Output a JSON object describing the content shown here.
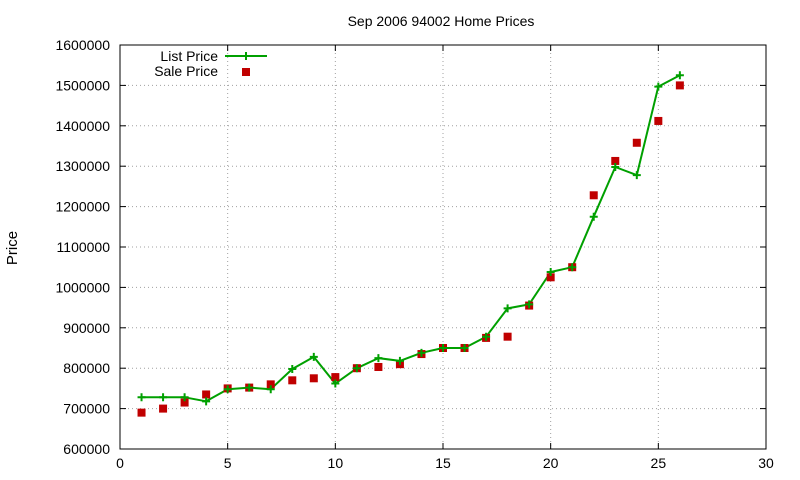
{
  "chart_data": {
    "type": "line",
    "title": "Sep 2006 94002 Home Prices",
    "xlabel": "",
    "ylabel": "Price",
    "xlim": [
      0,
      30
    ],
    "ylim": [
      600000,
      1600000
    ],
    "x_ticks": [
      "0",
      "5",
      "10",
      "15",
      "20",
      "25",
      "30"
    ],
    "y_ticks": [
      "600000",
      "700000",
      "800000",
      "900000",
      "1000000",
      "1100000",
      "1200000",
      "1300000",
      "1400000",
      "1500000",
      "1600000"
    ],
    "grid": true,
    "legend_position": "top-left",
    "series": [
      {
        "name": "List Price",
        "style": "line-with-plus-points",
        "color": "#00a000",
        "x": [
          1,
          2,
          3,
          4,
          5,
          6,
          7,
          8,
          9,
          10,
          11,
          12,
          13,
          14,
          15,
          16,
          17,
          18,
          19,
          20,
          21,
          22,
          23,
          24,
          25,
          26
        ],
        "y": [
          728000,
          728000,
          728000,
          718000,
          748000,
          752000,
          748000,
          798000,
          828000,
          762000,
          800000,
          825000,
          818000,
          838000,
          850000,
          850000,
          878000,
          948000,
          958000,
          1038000,
          1050000,
          1175000,
          1298000,
          1278000,
          1497000,
          1525000
        ]
      },
      {
        "name": "Sale Price",
        "style": "square-points",
        "color": "#c00000",
        "x": [
          1,
          2,
          3,
          4,
          5,
          6,
          7,
          8,
          9,
          10,
          11,
          12,
          13,
          14,
          15,
          16,
          17,
          18,
          19,
          20,
          21,
          22,
          23,
          24,
          25,
          26
        ],
        "y": [
          690000,
          700000,
          715000,
          735000,
          750000,
          752000,
          760000,
          770000,
          775000,
          778000,
          800000,
          803000,
          810000,
          835000,
          850000,
          850000,
          875000,
          878000,
          955000,
          1025000,
          1050000,
          1228000,
          1313000,
          1358000,
          1412000,
          1500000
        ]
      }
    ]
  }
}
